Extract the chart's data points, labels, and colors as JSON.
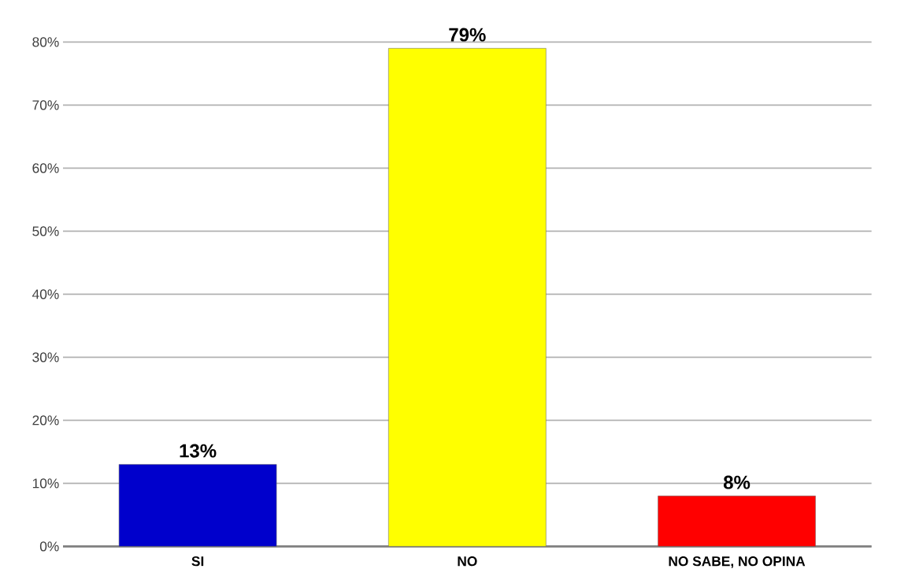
{
  "chart_data": {
    "type": "bar",
    "categories": [
      "SI",
      "NO",
      "NO SABE, NO OPINA"
    ],
    "values": [
      13,
      79,
      8
    ],
    "colors": [
      "#0000cc",
      "#ffff00",
      "#ff0000"
    ],
    "value_labels": [
      "13%",
      "79%",
      "8%"
    ],
    "ylim": [
      0,
      80
    ],
    "yticks": [
      {
        "value": 0,
        "label": "0%"
      },
      {
        "value": 10,
        "label": "10%"
      },
      {
        "value": 20,
        "label": "20%"
      },
      {
        "value": 30,
        "label": "30%"
      },
      {
        "value": 40,
        "label": "40%"
      },
      {
        "value": 50,
        "label": "50%"
      },
      {
        "value": 60,
        "label": "60%"
      },
      {
        "value": 70,
        "label": "70%"
      },
      {
        "value": 80,
        "label": "80%"
      }
    ],
    "grid": "y"
  }
}
